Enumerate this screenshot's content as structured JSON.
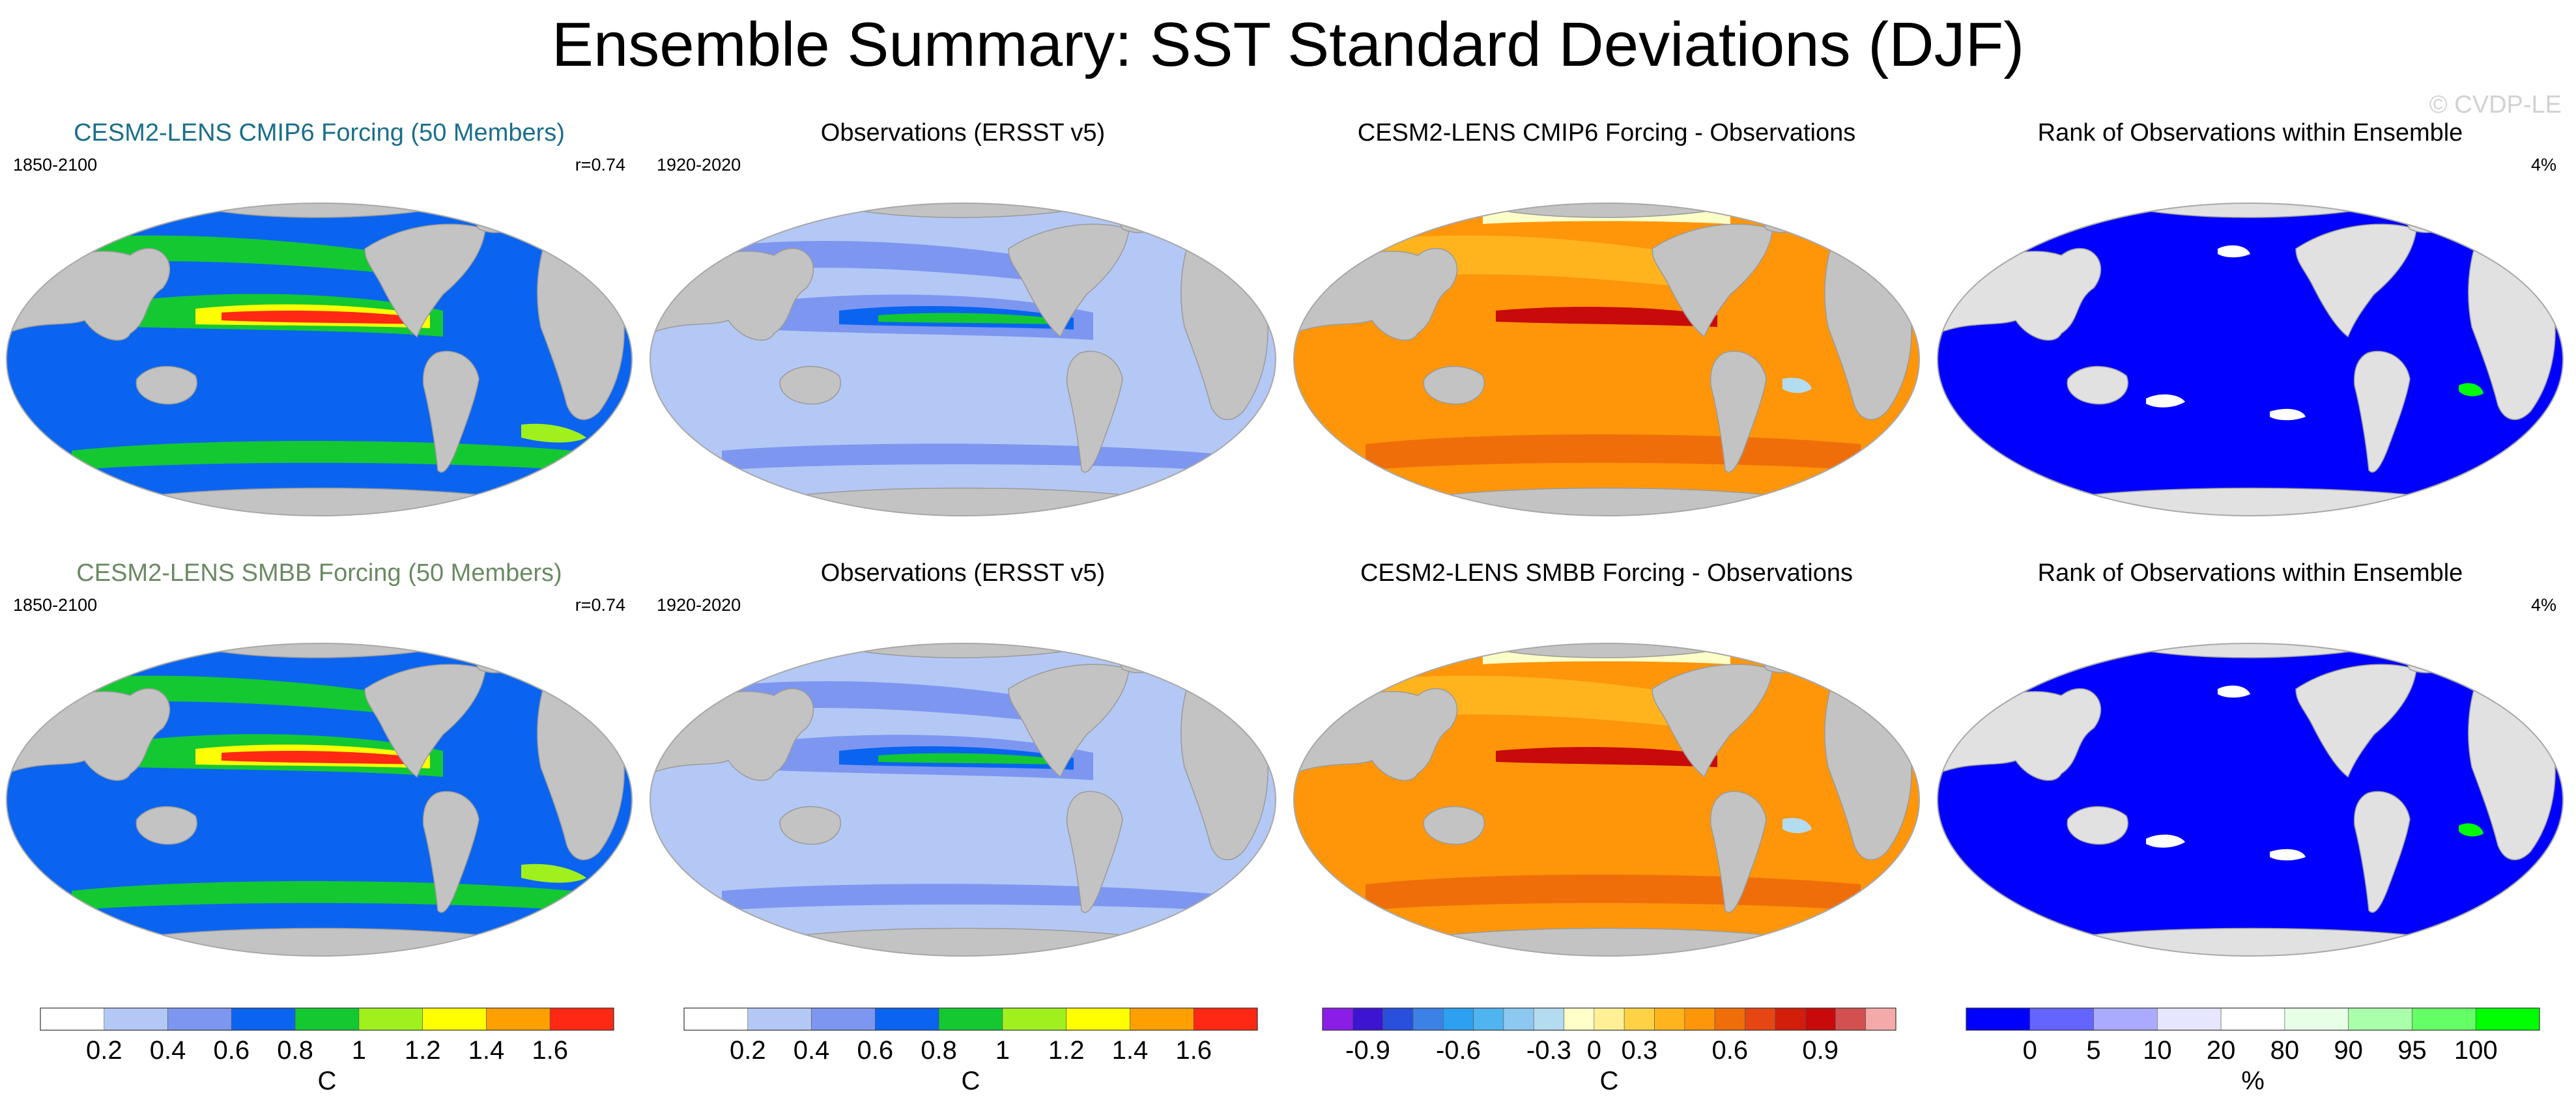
{
  "title": "Ensemble Summary: SST Standard Deviations (DJF)",
  "watermark": "© CVDP-LE",
  "colors": {
    "ocean_gray": "#c3c3c3",
    "land_gray_rank": "#e1e1e1",
    "title_cmip6": "#1a6e8a",
    "title_smbb": "#6a8a63"
  },
  "rows": [
    {
      "panels": [
        {
          "title": "CESM2-LENS CMIP6 Forcing (50 Members)",
          "period": "1850-2100",
          "stat": "r=0.74",
          "kind": "model"
        },
        {
          "title": "Observations (ERSST v5)",
          "period": "1920-2020",
          "stat": "",
          "kind": "obs"
        },
        {
          "title": "CESM2-LENS CMIP6 Forcing - Observations",
          "period": "",
          "stat": "",
          "kind": "diff"
        },
        {
          "title": "Rank of Observations within Ensemble",
          "period": "",
          "stat": "4%",
          "kind": "rank"
        }
      ]
    },
    {
      "panels": [
        {
          "title": "CESM2-LENS SMBB Forcing (50 Members)",
          "period": "1850-2100",
          "stat": "r=0.74",
          "kind": "model"
        },
        {
          "title": "Observations (ERSST v5)",
          "period": "1920-2020",
          "stat": "",
          "kind": "obs"
        },
        {
          "title": "CESM2-LENS SMBB Forcing - Observations",
          "period": "",
          "stat": "",
          "kind": "diff"
        },
        {
          "title": "Rank of Observations within Ensemble",
          "period": "",
          "stat": "4%",
          "kind": "rank"
        }
      ]
    }
  ],
  "chart_data": [
    {
      "type": "colorbar",
      "name": "sst-std-model",
      "unit": "C",
      "levels": [
        "0.2",
        "0.4",
        "0.6",
        "0.8",
        "1",
        "1.2",
        "1.4",
        "1.6"
      ],
      "colors": [
        "#ffffff",
        "#b4c8f5",
        "#7d96f0",
        "#0a64f0",
        "#14c832",
        "#a0f01e",
        "#ffff00",
        "#ffa000",
        "#ff2814"
      ]
    },
    {
      "type": "colorbar",
      "name": "sst-std-obs",
      "unit": "C",
      "levels": [
        "0.2",
        "0.4",
        "0.6",
        "0.8",
        "1",
        "1.2",
        "1.4",
        "1.6"
      ],
      "colors": [
        "#ffffff",
        "#b4c8f5",
        "#7d96f0",
        "#0a64f0",
        "#14c832",
        "#a0f01e",
        "#ffff00",
        "#ffa000",
        "#ff2814"
      ]
    },
    {
      "type": "colorbar",
      "name": "sst-std-difference",
      "unit": "C",
      "levels": [
        "-0.9",
        "-0.6",
        "-0.3",
        "0",
        "0.3",
        "0.6",
        "0.9"
      ],
      "colors": [
        "#8a1ee6",
        "#3c14d2",
        "#2850dc",
        "#3c82e6",
        "#2da0f0",
        "#50b4f0",
        "#8cc8f0",
        "#b4dcf0",
        "#ffffc8",
        "#fff096",
        "#ffd246",
        "#ffb41e",
        "#ff960a",
        "#f06e0a",
        "#e64614",
        "#d21e0a",
        "#c80a0a",
        "#d25050",
        "#f5aaaa"
      ],
      "tick_positions": [
        1.5,
        4.5,
        7.5,
        9,
        10.5,
        13.5,
        16.5
      ],
      "segments": 19
    },
    {
      "type": "colorbar",
      "name": "rank-percent",
      "unit": "%",
      "levels": [
        "0",
        "5",
        "10",
        "20",
        "80",
        "90",
        "95",
        "100"
      ],
      "colors": [
        "#0000ff",
        "#6464ff",
        "#aaaaff",
        "#e6e6ff",
        "#ffffff",
        "#e6ffe6",
        "#aaffaa",
        "#64ff64",
        "#00ff00"
      ]
    }
  ]
}
